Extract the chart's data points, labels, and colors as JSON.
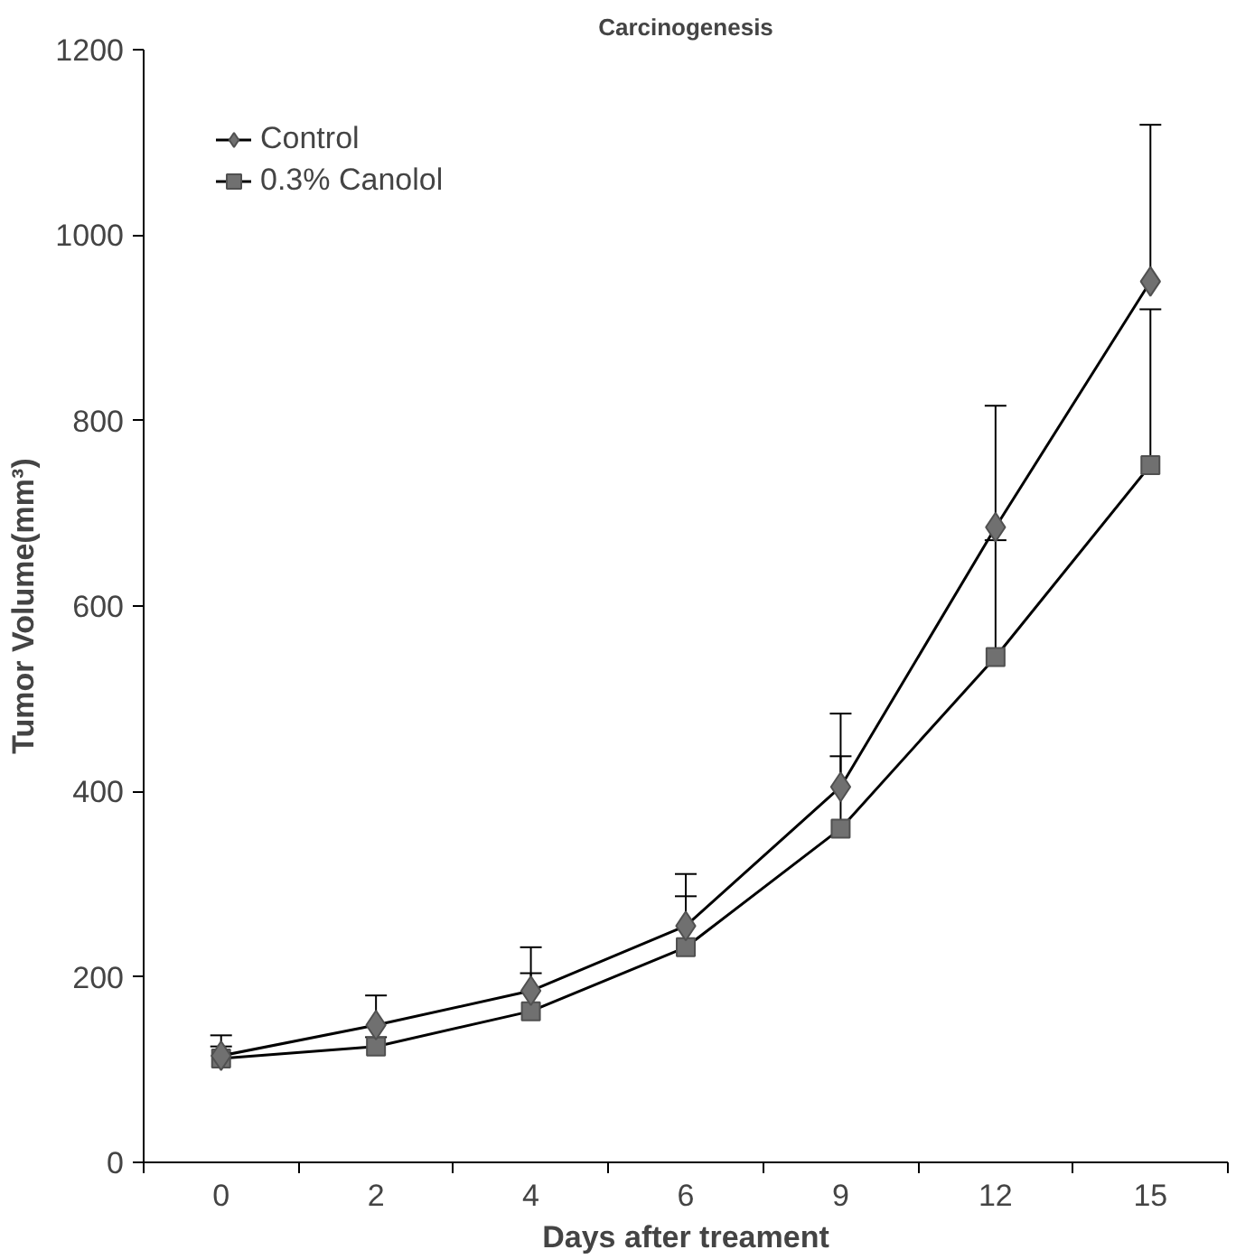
{
  "chart_data": {
    "type": "line",
    "title": "Carcinogenesis",
    "xlabel": "Days after treament",
    "ylabel": "Tumor Volume(mm³)",
    "categories": [
      "0",
      "2",
      "4",
      "6",
      "9",
      "12",
      "15"
    ],
    "ylim": [
      0,
      1200
    ],
    "yticks": [
      0,
      200,
      400,
      600,
      800,
      1000,
      1200
    ],
    "grid": false,
    "legend": "top left",
    "line_style": "solid",
    "series": [
      {
        "name": "Control",
        "color": "#707070",
        "marker": "diamond",
        "values": [
          115,
          148,
          185,
          255,
          405,
          685,
          950
        ],
        "errors": [
          [
            115,
            137
          ],
          [
            148,
            180
          ],
          [
            185,
            232
          ],
          [
            255,
            311
          ],
          [
            405,
            484
          ],
          [
            685,
            816
          ],
          [
            950,
            1119
          ]
        ]
      },
      {
        "name": "0.3% Canolol",
        "color": "#707070",
        "marker": "square",
        "values": [
          112,
          125,
          163,
          232,
          360,
          545,
          752
        ],
        "errors": [
          [
            112,
            125
          ],
          [
            125,
            135
          ],
          [
            163,
            204
          ],
          [
            232,
            287
          ],
          [
            360,
            438
          ],
          [
            545,
            671
          ],
          [
            752,
            920
          ]
        ]
      }
    ]
  }
}
